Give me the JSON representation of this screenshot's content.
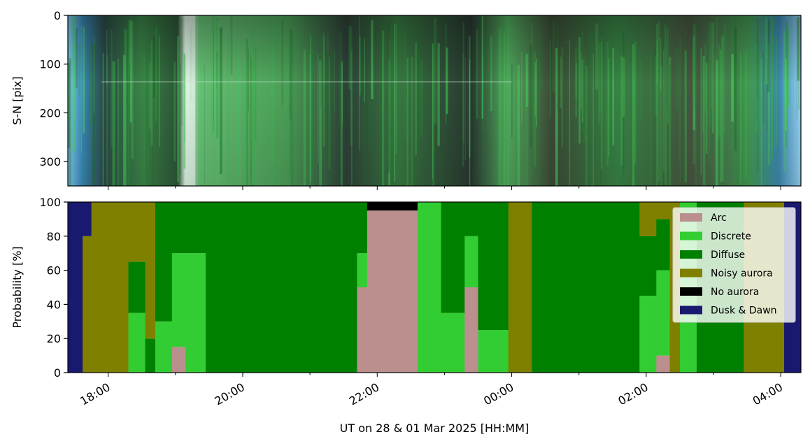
{
  "chart_data": [
    {
      "type": "heatmap",
      "description_role": "keogram",
      "ylabel": "S-N [pix]",
      "ylim": [
        350,
        0
      ],
      "yticks": [
        0,
        100,
        200,
        300
      ],
      "xlim_hours": [
        17.4,
        28.3
      ],
      "xticks_hours": [
        18,
        20,
        22,
        24,
        26,
        28
      ],
      "xticklabels": [
        "18:00",
        "20:00",
        "22:00",
        "00:00",
        "02:00",
        "04:00"
      ],
      "colors": {
        "twilight": "#7ac8ee",
        "dark": "#2f3a34",
        "diffuse_green": "#3a8a48",
        "bright_green": "#7ce08a",
        "saturated": "#e8fff0"
      }
    },
    {
      "type": "area",
      "stacked": true,
      "ylabel": "Probability [%]",
      "xlabel": "UT on 28 & 01 Mar 2025 [HH:MM]",
      "ylim": [
        0,
        100
      ],
      "yticks": [
        0,
        20,
        40,
        60,
        80,
        100
      ],
      "xlim_hours": [
        17.4,
        28.3
      ],
      "xticks_hours": [
        18,
        20,
        22,
        24,
        26,
        28
      ],
      "xticklabels": [
        "18:00",
        "20:00",
        "22:00",
        "00:00",
        "02:00",
        "04:00"
      ],
      "legend_position": "top-right",
      "series": [
        {
          "name": "Arc",
          "color": "#bc8f8f"
        },
        {
          "name": "Discrete",
          "color": "#32cd32"
        },
        {
          "name": "Diffuse",
          "color": "#008000"
        },
        {
          "name": "Noisy aurora",
          "color": "#808000"
        },
        {
          "name": "No aurora",
          "color": "#000000"
        },
        {
          "name": "Dusk & Dawn",
          "color": "#191970"
        }
      ],
      "segments_hours": [
        {
          "start": 17.4,
          "end": 17.62,
          "probs": [
            0,
            0,
            0,
            0,
            0,
            100
          ]
        },
        {
          "start": 17.62,
          "end": 17.75,
          "probs": [
            0,
            0,
            0,
            80,
            0,
            20
          ]
        },
        {
          "start": 17.75,
          "end": 18.3,
          "probs": [
            0,
            0,
            0,
            100,
            0,
            0
          ]
        },
        {
          "start": 18.3,
          "end": 18.55,
          "probs": [
            0,
            35,
            30,
            35,
            0,
            0
          ]
        },
        {
          "start": 18.55,
          "end": 18.7,
          "probs": [
            0,
            0,
            20,
            80,
            0,
            0
          ]
        },
        {
          "start": 18.7,
          "end": 18.95,
          "probs": [
            0,
            30,
            70,
            0,
            0,
            0
          ]
        },
        {
          "start": 18.95,
          "end": 19.15,
          "probs": [
            15,
            55,
            30,
            0,
            0,
            0
          ]
        },
        {
          "start": 19.15,
          "end": 19.45,
          "probs": [
            0,
            70,
            30,
            0,
            0,
            0
          ]
        },
        {
          "start": 19.45,
          "end": 21.7,
          "probs": [
            0,
            0,
            100,
            0,
            0,
            0
          ]
        },
        {
          "start": 21.7,
          "end": 21.85,
          "probs": [
            50,
            20,
            30,
            0,
            0,
            0
          ]
        },
        {
          "start": 21.85,
          "end": 22.6,
          "probs": [
            95,
            0,
            0,
            0,
            5,
            0
          ]
        },
        {
          "start": 22.6,
          "end": 22.95,
          "probs": [
            0,
            100,
            0,
            0,
            0,
            0
          ]
        },
        {
          "start": 22.95,
          "end": 23.3,
          "probs": [
            0,
            35,
            65,
            0,
            0,
            0
          ]
        },
        {
          "start": 23.3,
          "end": 23.5,
          "probs": [
            50,
            30,
            20,
            0,
            0,
            0
          ]
        },
        {
          "start": 23.5,
          "end": 23.95,
          "probs": [
            0,
            25,
            75,
            0,
            0,
            0
          ]
        },
        {
          "start": 23.95,
          "end": 24.3,
          "probs": [
            0,
            0,
            0,
            100,
            0,
            0
          ]
        },
        {
          "start": 24.3,
          "end": 25.9,
          "probs": [
            0,
            0,
            100,
            0,
            0,
            0
          ]
        },
        {
          "start": 25.9,
          "end": 26.15,
          "probs": [
            0,
            45,
            35,
            20,
            0,
            0
          ]
        },
        {
          "start": 26.15,
          "end": 26.35,
          "probs": [
            10,
            50,
            30,
            10,
            0,
            0
          ]
        },
        {
          "start": 26.35,
          "end": 26.5,
          "probs": [
            0,
            0,
            0,
            100,
            0,
            0
          ]
        },
        {
          "start": 26.5,
          "end": 26.75,
          "probs": [
            0,
            100,
            0,
            0,
            0,
            0
          ]
        },
        {
          "start": 26.75,
          "end": 27.45,
          "probs": [
            0,
            0,
            100,
            0,
            0,
            0
          ]
        },
        {
          "start": 27.45,
          "end": 28.05,
          "probs": [
            0,
            0,
            0,
            100,
            0,
            0
          ]
        },
        {
          "start": 28.05,
          "end": 28.3,
          "probs": [
            0,
            0,
            0,
            0,
            0,
            100
          ]
        }
      ]
    }
  ]
}
